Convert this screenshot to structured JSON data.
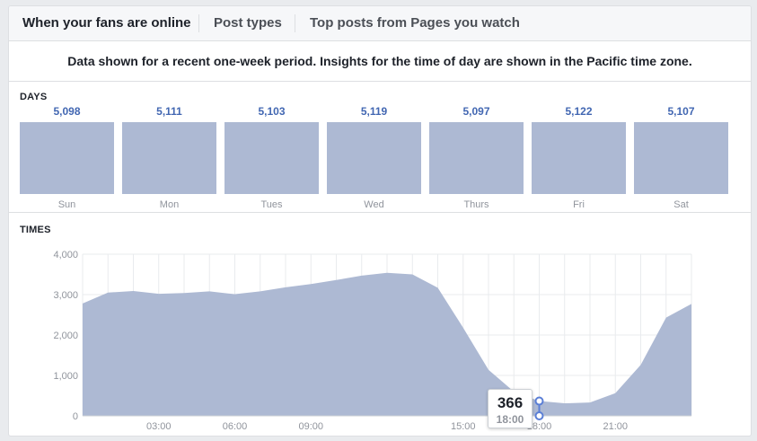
{
  "tabs": [
    {
      "label": "When your fans are online",
      "active": true
    },
    {
      "label": "Post types",
      "active": false
    },
    {
      "label": "Top posts from Pages you watch",
      "active": false
    }
  ],
  "notice": "Data shown for a recent one-week period. Insights for the time of day are shown in the Pacific time zone.",
  "days_section": {
    "label": "DAYS"
  },
  "times_section": {
    "label": "TIMES"
  },
  "tooltip": {
    "value": "366",
    "time": "18:00"
  },
  "colors": {
    "bar": "#adb9d3",
    "area": "#adb9d3",
    "value_text": "#4267b2",
    "grid": "#e9ebee",
    "marker": "#5b7fd6"
  },
  "chart_data": [
    {
      "type": "bar",
      "title": "DAYS",
      "categories": [
        "Sun",
        "Mon",
        "Tues",
        "Wed",
        "Thurs",
        "Fri",
        "Sat"
      ],
      "values": [
        5098,
        5111,
        5103,
        5119,
        5097,
        5122,
        5107
      ],
      "value_labels": [
        "5,098",
        "5,111",
        "5,103",
        "5,119",
        "5,097",
        "5,122",
        "5,107"
      ],
      "grid": false
    },
    {
      "type": "area",
      "title": "TIMES",
      "x": [
        0,
        1,
        2,
        3,
        4,
        5,
        6,
        7,
        8,
        9,
        10,
        11,
        12,
        13,
        14,
        15,
        16,
        17,
        18,
        19,
        20,
        21,
        22,
        23,
        24
      ],
      "values": [
        2780,
        3050,
        3090,
        3020,
        3040,
        3080,
        3010,
        3080,
        3180,
        3260,
        3360,
        3470,
        3540,
        3500,
        3170,
        2180,
        1140,
        600,
        366,
        310,
        330,
        560,
        1260,
        2430,
        2770
      ],
      "xticks": [
        3,
        6,
        9,
        15,
        18,
        21
      ],
      "xtick_labels": [
        "03:00",
        "06:00",
        "09:00",
        "15:00",
        "18:00",
        "21:00"
      ],
      "yticks": [
        0,
        1000,
        2000,
        3000,
        4000
      ],
      "ytick_labels": [
        "0",
        "1,000",
        "2,000",
        "3,000",
        "4,000"
      ],
      "xlim": [
        0,
        24
      ],
      "ylim": [
        0,
        4000
      ],
      "grid": true,
      "highlight_index": 18
    }
  ]
}
